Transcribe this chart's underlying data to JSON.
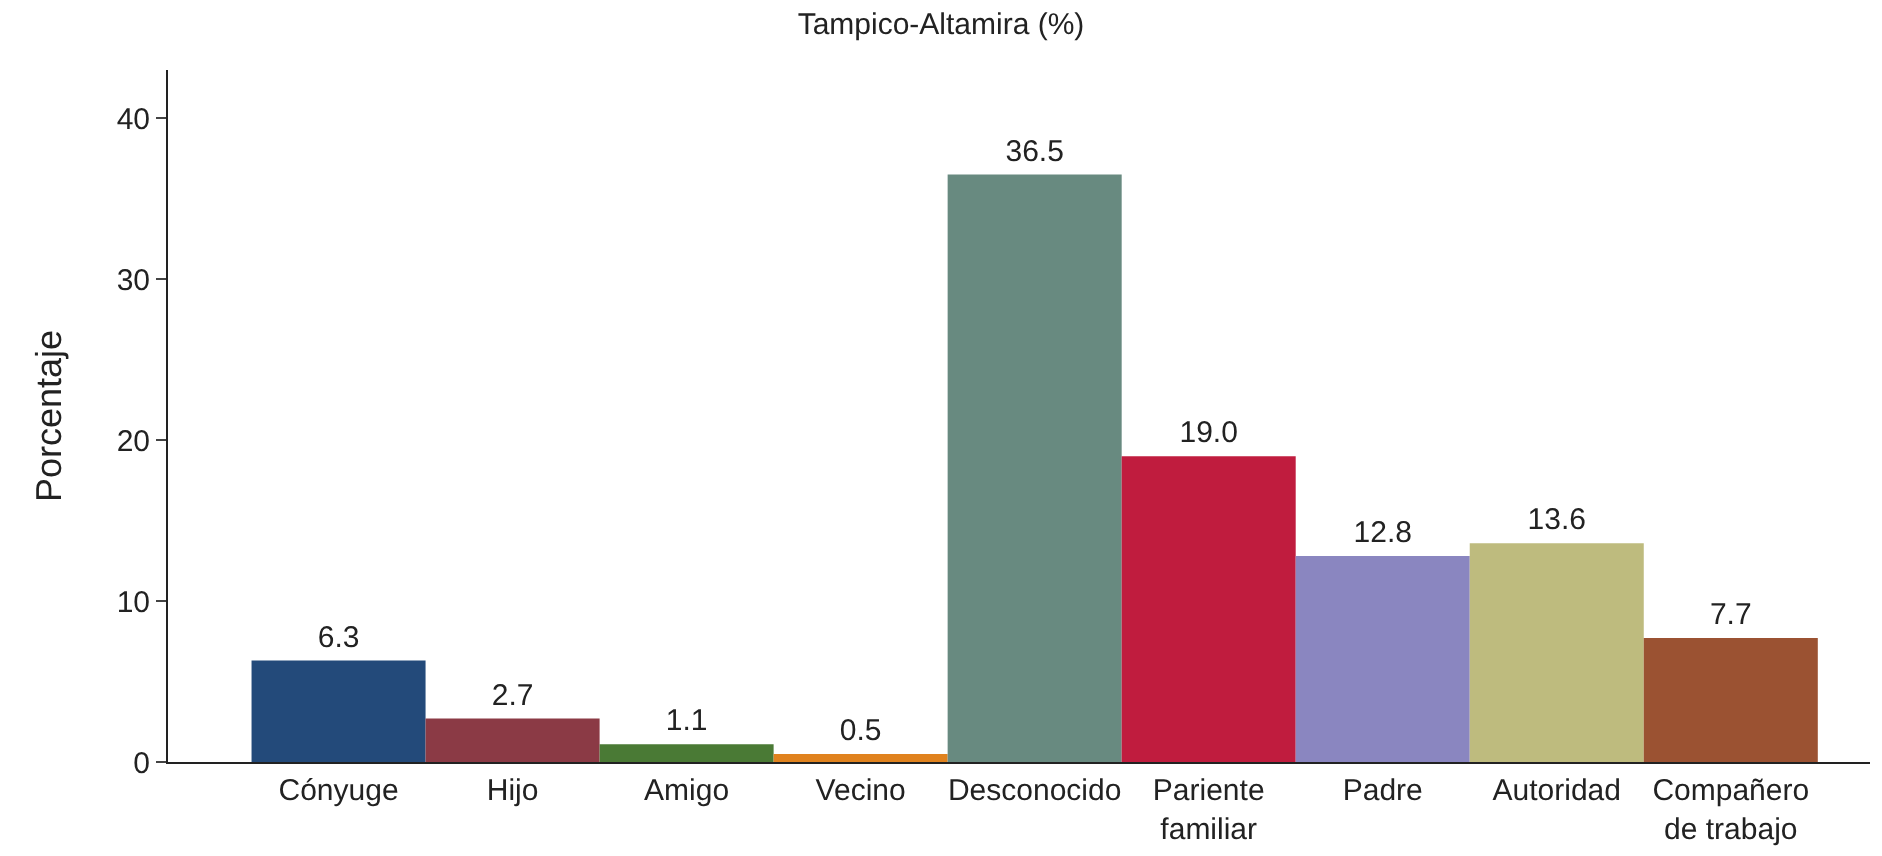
{
  "chart_data": {
    "type": "bar",
    "title": "Tampico-Altamira (%)",
    "ylabel": "Porcentaje",
    "categories": [
      "Cónyuge",
      "Hijo",
      "Amigo",
      "Vecino",
      "Desconocido",
      "Pariente familiar",
      "Padre",
      "Autoridad",
      "Compañero de trabajo"
    ],
    "values": [
      6.3,
      2.7,
      1.1,
      0.5,
      36.5,
      19.0,
      12.8,
      13.6,
      7.7
    ],
    "value_labels": [
      "6.3",
      "2.7",
      "1.1",
      "0.5",
      "36.5",
      "19.0",
      "12.8",
      "13.6",
      "7.7"
    ],
    "colors": [
      "#234a7a",
      "#8b3a45",
      "#4a7a35",
      "#e0821e",
      "#688a80",
      "#c01c3e",
      "#8a86c0",
      "#bebb7e",
      "#9b5232"
    ],
    "ylim": [
      0,
      43
    ],
    "yticks": [
      0,
      10,
      20,
      30,
      40
    ],
    "grid": false
  }
}
